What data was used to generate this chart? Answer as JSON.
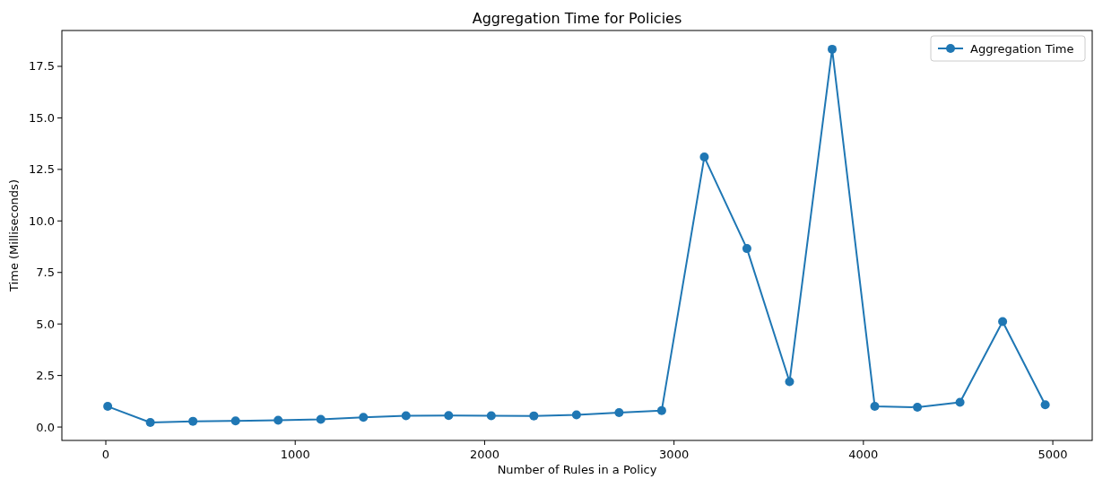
{
  "chart_data": {
    "type": "line",
    "title": "Aggregation Time for Policies",
    "xlabel": "Number of Rules in a Policy",
    "ylabel": "Time (Milliseconds)",
    "x": [
      10,
      235,
      460,
      685,
      910,
      1135,
      1360,
      1585,
      1810,
      2035,
      2260,
      2485,
      2710,
      2935,
      3160,
      3385,
      3610,
      3835,
      4060,
      4285,
      4510,
      4735,
      4960
    ],
    "series": [
      {
        "name": "Aggregation Time",
        "color": "#1f77b4",
        "values": [
          1.0,
          0.22,
          0.28,
          0.3,
          0.33,
          0.37,
          0.47,
          0.55,
          0.56,
          0.55,
          0.54,
          0.59,
          0.7,
          0.8,
          13.1,
          8.66,
          2.2,
          18.33,
          1.0,
          0.96,
          1.2,
          5.12,
          1.08
        ]
      }
    ],
    "xlim": [
      -232,
      5208
    ],
    "xticks": [
      0,
      1000,
      2000,
      3000,
      4000,
      5000
    ],
    "ylim": [
      -0.65,
      19.24
    ],
    "yticks": [
      {
        "value": 0,
        "label": "0.0"
      },
      {
        "value": 2.5,
        "label": "2.5"
      },
      {
        "value": 5,
        "label": "5.0"
      },
      {
        "value": 7.5,
        "label": "7.5"
      },
      {
        "value": 10,
        "label": "10.0"
      },
      {
        "value": 12.5,
        "label": "12.5"
      },
      {
        "value": 15,
        "label": "15.0"
      },
      {
        "value": 17.5,
        "label": "17.5"
      }
    ],
    "legend": "top right",
    "marker": "circle",
    "line_style": "solid"
  }
}
